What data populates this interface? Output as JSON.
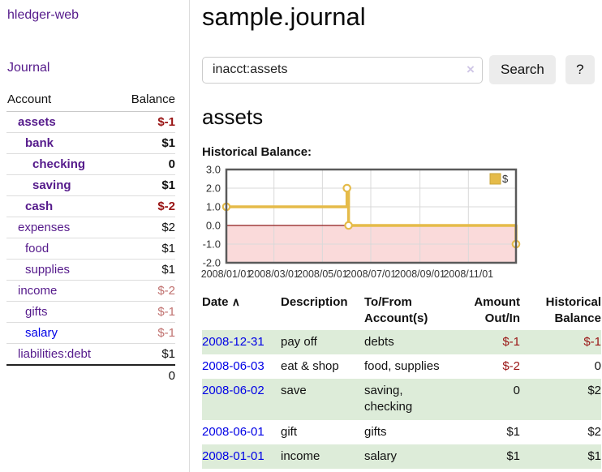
{
  "colors": {
    "link_purple": "#551a8b",
    "link_blue": "#0000e6",
    "negative_strong": "#991414",
    "negative_soft": "#c0716f",
    "row_green": "#ddecd9",
    "series_gold": "#e5bb49"
  },
  "sidebar": {
    "brand": "hledger-web",
    "journal_link": "Journal",
    "accounts": {
      "headers": {
        "account": "Account",
        "balance": "Balance"
      },
      "rows": [
        {
          "account": "assets",
          "balance": "$-1"
        },
        {
          "account": "bank",
          "balance": "$1"
        },
        {
          "account": "checking",
          "balance": "0"
        },
        {
          "account": "saving",
          "balance": "$1"
        },
        {
          "account": "cash",
          "balance": "$-2"
        },
        {
          "account": "expenses",
          "balance": "$2"
        },
        {
          "account": "food",
          "balance": "$1"
        },
        {
          "account": "supplies",
          "balance": "$1"
        },
        {
          "account": "income",
          "balance": "$-2"
        },
        {
          "account": "gifts",
          "balance": "$-1"
        },
        {
          "account": "salary",
          "balance": "$-1"
        },
        {
          "account": "liabilities:debts",
          "balance": "$1"
        }
      ],
      "total": "0"
    }
  },
  "main": {
    "title": "sample.journal",
    "search": {
      "query": "inacct:assets",
      "clear_icon": "×",
      "button": "Search",
      "help_button": "?"
    },
    "account_heading": "assets",
    "chart_label": "Historical Balance:"
  },
  "chart_data": {
    "type": "line",
    "title": "Historical Balance:",
    "step": true,
    "series": [
      {
        "name": "$",
        "color": "#e5bb49",
        "points": [
          {
            "date": "2008-01-01",
            "value": 1
          },
          {
            "date": "2008-06-01",
            "value": 2
          },
          {
            "date": "2008-06-03",
            "value": 0
          },
          {
            "date": "2008-12-31",
            "value": -1
          }
        ]
      }
    ],
    "xrange": [
      "2008-01-01",
      "2008-12-31"
    ],
    "ylim": [
      -2,
      3
    ],
    "yticks": [
      3,
      2,
      1,
      0,
      -1,
      -2
    ],
    "xticks": [
      {
        "label": "2008/01/01",
        "date": "2008-01-01"
      },
      {
        "label": "2008/03/01",
        "date": "2008-03-01"
      },
      {
        "label": "2008/05/01",
        "date": "2008-05-01"
      },
      {
        "label": "2008/07/01",
        "date": "2008-07-01"
      },
      {
        "label": "2008/09/01",
        "date": "2008-09-01"
      },
      {
        "label": "2008/11/01",
        "date": "2008-11-01"
      }
    ],
    "grid": true,
    "legend_position": "top-right",
    "negative_region_color": "#fadada",
    "zero_line_color": "#8f1a1a",
    "border_color": "#5a5a5a",
    "grid_color": "#d9d9d9"
  },
  "register": {
    "headers": {
      "date": "Date",
      "sort_indicator": "∧",
      "description": "Description",
      "accounts": "To/From Account(s)",
      "amount": "Amount Out/In",
      "balance": "Historical Balance"
    },
    "rows": [
      {
        "date": "2008-12-31",
        "description": "pay off",
        "accounts": "debts",
        "amount": "$-1",
        "balance": "$-1"
      },
      {
        "date": "2008-06-03",
        "description": "eat & shop",
        "accounts": "food, supplies",
        "amount": "$-2",
        "balance": "0"
      },
      {
        "date": "2008-06-02",
        "description": "save",
        "accounts": "saving,\nchecking",
        "amount": "0",
        "balance": "$2"
      },
      {
        "date": "2008-06-01",
        "description": "gift",
        "accounts": "gifts",
        "amount": "$1",
        "balance": "$2"
      },
      {
        "date": "2008-01-01",
        "description": "income",
        "accounts": "salary",
        "amount": "$1",
        "balance": "$1"
      }
    ]
  }
}
